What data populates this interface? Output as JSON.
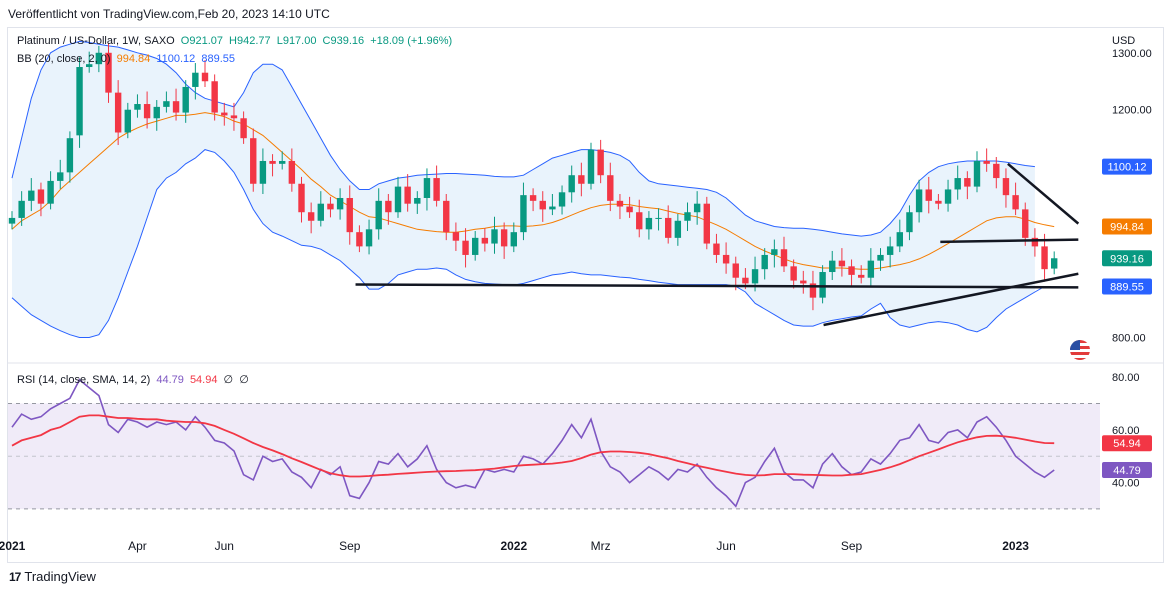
{
  "header": {
    "published": "Veröffentlicht von TradingView.com,Feb 20, 2023 14:10 UTC"
  },
  "legend": {
    "symbol": "Platinum / US-Dollar, 1W, SAXO",
    "open": "O921.07",
    "high": "H942.77",
    "low": "L917.00",
    "close": "C939.16",
    "change": "+18.09 (+1.96%)",
    "bb_label": "BB (20, close, 2, 0)",
    "bb_mid": "994.84",
    "bb_upper": "1100.12",
    "bb_lower": "889.55",
    "rsi_label": "RSI (14, close, SMA, 14, 2)",
    "rsi_value": "44.79",
    "rsi_ma_value": "54.94",
    "na1": "∅",
    "na2": "∅",
    "currency": "USD"
  },
  "footer": {
    "brand": "TradingView",
    "brand_mark": "17"
  },
  "colors": {
    "up": "#089981",
    "down": "#f23645",
    "bb_mid": "#f57c00",
    "bb_band": "#2962ff",
    "bb_fill": "#e3f0fb",
    "rsi": "#7e57c2",
    "rsi_ma": "#f23645",
    "rsi_bg": "#f0ebf8",
    "trend": "#131722"
  },
  "chart_data": [
    {
      "type": "candlestick",
      "title": "Platinum / US-Dollar, 1W, SAXO",
      "price_axis": {
        "ticks": [
          1300,
          1200,
          800
        ],
        "tick_labels": [
          "1300.00",
          "1200.00",
          "800.00"
        ],
        "range": [
          757,
          1340
        ]
      },
      "time_axis": {
        "labels": [
          "2021",
          "Apr",
          "Jun",
          "Sep",
          "2022",
          "Mrz",
          "Jun",
          "Sep",
          "2023"
        ],
        "label_index": [
          0,
          13,
          22,
          35,
          52,
          61,
          74,
          87,
          104
        ],
        "bold": [
          "2021",
          "2022",
          "2023"
        ]
      },
      "price_labels": [
        {
          "text": "1100.12",
          "value": 1100.12,
          "color": "#2962ff"
        },
        {
          "text": "994.84",
          "value": 994.84,
          "color": "#f57c00"
        },
        {
          "text": "939.16",
          "value": 939.16,
          "color": "#089981"
        },
        {
          "text": "889.55",
          "value": 889.55,
          "color": "#2962ff"
        }
      ],
      "closes": [
        1010,
        1040,
        1058,
        1035,
        1075,
        1090,
        1150,
        1275,
        1280,
        1300,
        1230,
        1160,
        1200,
        1210,
        1185,
        1205,
        1215,
        1195,
        1240,
        1265,
        1250,
        1195,
        1190,
        1185,
        1150,
        1070,
        1110,
        1105,
        1110,
        1070,
        1020,
        1005,
        1035,
        1025,
        1045,
        985,
        960,
        990,
        1040,
        1020,
        1065,
        1035,
        1045,
        1080,
        1040,
        985,
        970,
        945,
        975,
        965,
        990,
        960,
        985,
        1050,
        1040,
        1025,
        1030,
        1055,
        1085,
        1070,
        1130,
        1085,
        1040,
        1030,
        1020,
        990,
        1010,
        1010,
        975,
        1005,
        1020,
        1035,
        965,
        945,
        930,
        905,
        895,
        920,
        945,
        955,
        925,
        900,
        895,
        870,
        915,
        935,
        925,
        910,
        905,
        935,
        945,
        960,
        985,
        1020,
        1060,
        1040,
        1035,
        1060,
        1080,
        1065,
        1110,
        1105,
        1080,
        1050,
        1025,
        975,
        960,
        920,
        939.16
      ],
      "opens": [
        1000,
        1010,
        1040,
        1060,
        1035,
        1075,
        1090,
        1155,
        1275,
        1280,
        1300,
        1230,
        1160,
        1200,
        1210,
        1185,
        1205,
        1215,
        1195,
        1240,
        1265,
        1250,
        1195,
        1190,
        1185,
        1150,
        1070,
        1110,
        1105,
        1110,
        1070,
        1020,
        1005,
        1035,
        1025,
        1045,
        985,
        960,
        990,
        1040,
        1020,
        1065,
        1035,
        1045,
        1080,
        1040,
        985,
        970,
        945,
        975,
        965,
        990,
        960,
        985,
        1050,
        1040,
        1025,
        1030,
        1055,
        1085,
        1070,
        1130,
        1085,
        1040,
        1030,
        1020,
        990,
        1010,
        1010,
        975,
        1005,
        1020,
        1035,
        965,
        945,
        930,
        905,
        895,
        920,
        945,
        955,
        925,
        900,
        895,
        870,
        915,
        935,
        925,
        910,
        905,
        935,
        945,
        960,
        985,
        1020,
        1060,
        1040,
        1035,
        1060,
        1080,
        1065,
        1110,
        1105,
        1080,
        1050,
        1025,
        975,
        960,
        921.07
      ],
      "bb_upper": [
        1080,
        1150,
        1220,
        1270,
        1300,
        1310,
        1315,
        1320,
        1318,
        1315,
        1312,
        1310,
        1305,
        1300,
        1296,
        1290,
        1280,
        1265,
        1245,
        1230,
        1220,
        1215,
        1210,
        1205,
        1230,
        1265,
        1280,
        1280,
        1270,
        1240,
        1210,
        1180,
        1150,
        1120,
        1095,
        1075,
        1060,
        1060,
        1070,
        1075,
        1080,
        1082,
        1085,
        1086,
        1087,
        1088,
        1088,
        1087,
        1086,
        1085,
        1083,
        1082,
        1082,
        1085,
        1095,
        1105,
        1115,
        1120,
        1125,
        1130,
        1130,
        1128,
        1125,
        1120,
        1110,
        1090,
        1075,
        1070,
        1068,
        1066,
        1064,
        1062,
        1060,
        1055,
        1045,
        1030,
        1015,
        1005,
        1000,
        995,
        993,
        992,
        992,
        990,
        988,
        985,
        982,
        980,
        978,
        980,
        985,
        1000,
        1020,
        1050,
        1075,
        1090,
        1100,
        1105,
        1108,
        1110,
        1110,
        1110,
        1110,
        1108,
        1105,
        1102,
        1100.12
      ],
      "bb_mid": [
        990,
        1005,
        1015,
        1025,
        1040,
        1060,
        1075,
        1090,
        1105,
        1120,
        1135,
        1150,
        1160,
        1168,
        1175,
        1180,
        1185,
        1190,
        1190,
        1192,
        1195,
        1192,
        1188,
        1180,
        1175,
        1165,
        1155,
        1140,
        1125,
        1110,
        1095,
        1078,
        1065,
        1050,
        1040,
        1030,
        1020,
        1012,
        1010,
        1005,
        1000,
        995,
        990,
        988,
        986,
        985,
        985,
        987,
        990,
        992,
        995,
        996,
        996,
        995,
        996,
        998,
        1002,
        1008,
        1015,
        1022,
        1028,
        1032,
        1034,
        1034,
        1033,
        1030,
        1028,
        1026,
        1022,
        1018,
        1015,
        1012,
        1005,
        998,
        990,
        980,
        970,
        960,
        952,
        945,
        938,
        932,
        928,
        925,
        922,
        922,
        922,
        921,
        920,
        920,
        922,
        925,
        928,
        932,
        938,
        946,
        955,
        965,
        975,
        985,
        995,
        1005,
        1010,
        1012,
        1012,
        1008,
        1002,
        998,
        994.84
      ],
      "bb_lower": [
        870,
        855,
        840,
        830,
        820,
        812,
        805,
        800,
        800,
        805,
        830,
        870,
        915,
        960,
        1010,
        1060,
        1080,
        1090,
        1105,
        1115,
        1130,
        1125,
        1110,
        1090,
        1060,
        1025,
        1000,
        985,
        978,
        970,
        962,
        960,
        955,
        945,
        935,
        920,
        905,
        885,
        885,
        895,
        910,
        915,
        920,
        920,
        922,
        920,
        910,
        902,
        898,
        895,
        894,
        893,
        892,
        895,
        900,
        905,
        910,
        912,
        915,
        912,
        910,
        910,
        908,
        906,
        905,
        902,
        900,
        897,
        895,
        893,
        893,
        893,
        893,
        893,
        893,
        890,
        880,
        860,
        850,
        840,
        830,
        822,
        820,
        820,
        826,
        830,
        833,
        836,
        838,
        850,
        860,
        835,
        822,
        818,
        822,
        826,
        828,
        826,
        822,
        814,
        810,
        818,
        835,
        850,
        860,
        870,
        880,
        889.55
      ],
      "trendlines": [
        {
          "from": {
            "i": 35.6,
            "v": 893
          },
          "to": {
            "i": 110.5,
            "v": 888
          }
        },
        {
          "from": {
            "i": 84.1,
            "v": 822
          },
          "to": {
            "i": 110.5,
            "v": 912
          }
        },
        {
          "from": {
            "i": 96.2,
            "v": 968
          },
          "to": {
            "i": 110.5,
            "v": 972
          }
        },
        {
          "from": {
            "i": 103.2,
            "v": 1105
          },
          "to": {
            "i": 110.5,
            "v": 1000
          }
        }
      ]
    },
    {
      "type": "line",
      "title": "RSI (14, close, SMA, 14, 2)",
      "y_axis": {
        "range": [
          22,
          85
        ],
        "ticks": [
          80,
          60,
          40
        ],
        "tick_labels": [
          "80.00",
          "60.00",
          "40.00"
        ],
        "band": [
          30,
          70
        ]
      },
      "price_labels": [
        {
          "text": "54.94",
          "value": 54.94,
          "color": "#f23645"
        },
        {
          "text": "44.79",
          "value": 44.79,
          "color": "#7e57c2"
        }
      ],
      "series": [
        {
          "name": "RSI",
          "values": [
            61,
            66,
            64,
            65,
            68,
            70,
            72,
            79,
            76,
            73,
            62,
            59,
            64,
            63,
            61,
            63,
            62,
            63,
            60,
            65,
            61,
            56,
            55,
            52,
            43,
            41,
            50,
            48,
            49,
            44,
            42,
            38,
            45,
            43,
            46,
            35,
            34,
            40,
            48,
            47,
            51,
            46,
            49,
            54,
            45,
            40,
            38,
            39,
            38,
            45,
            44,
            45,
            44,
            50,
            49,
            47,
            51,
            56,
            62,
            57,
            64,
            52,
            46,
            44,
            40,
            43,
            46,
            44,
            41,
            45,
            44,
            47,
            42,
            38,
            35,
            31,
            40,
            42,
            48,
            53,
            44,
            41,
            41,
            38,
            47,
            51,
            46,
            43,
            44,
            49,
            47,
            51,
            56,
            57,
            62,
            56,
            55,
            59,
            60,
            57,
            63,
            65,
            61,
            56,
            50,
            47,
            44,
            42,
            44.79
          ]
        },
        {
          "name": "RSI-based MA",
          "values": [
            54,
            56,
            57,
            58,
            60,
            61,
            63,
            65,
            65.5,
            65.5,
            65,
            64.5,
            64.5,
            64.2,
            64,
            64,
            63.5,
            63.2,
            63,
            63,
            62.5,
            61.5,
            60,
            58.5,
            56.8,
            55,
            53.5,
            52.2,
            50.8,
            49.2,
            47.8,
            46.3,
            44.8,
            43.5,
            42.8,
            42.3,
            42.3,
            42.5,
            42.8,
            43,
            43.3,
            43.5,
            43.8,
            44,
            44.2,
            44.3,
            44.4,
            44.6,
            44.7,
            45,
            45.3,
            45.8,
            46.3,
            46.6,
            46.8,
            47,
            47.2,
            47.6,
            48.2,
            49.3,
            50.6,
            51.5,
            51.8,
            51.8,
            51.6,
            51.3,
            50.8,
            50,
            49.2,
            48.2,
            47.3,
            46.4,
            45.6,
            44.8,
            44.1,
            43.4,
            42.9,
            42.7,
            42.8,
            43.2,
            43.2,
            43.2,
            43,
            42.9,
            42.8,
            42.7,
            42.7,
            43,
            43.2,
            44,
            44.8,
            45.8,
            47,
            48.5,
            50,
            51.3,
            52.6,
            54,
            55.3,
            56.3,
            57.2,
            57.7,
            57.8,
            57.5,
            57,
            56.3,
            55.6,
            55,
            54.94
          ]
        }
      ]
    }
  ]
}
